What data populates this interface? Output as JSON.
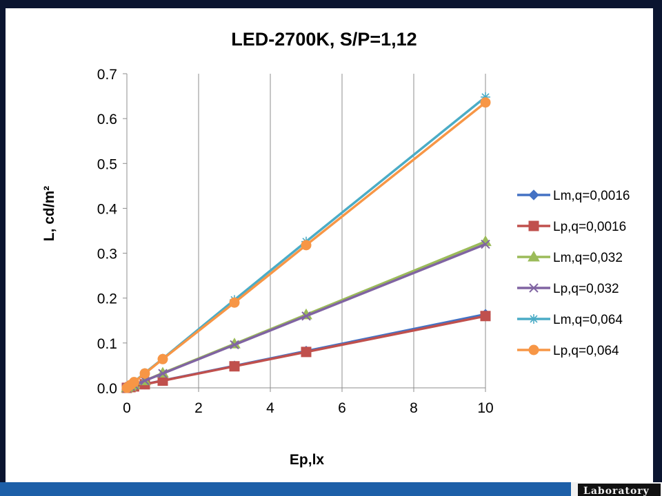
{
  "chart_data": {
    "type": "line",
    "title": "LED-2700K, S/P=1,12",
    "xlabel": "Ep,lx",
    "ylabel": "L, cd/m²",
    "xlim": [
      0,
      10
    ],
    "ylim": [
      0,
      0.7
    ],
    "xticks": [
      0,
      2,
      4,
      6,
      8,
      10
    ],
    "xtick_labels": [
      "0",
      "2",
      "4",
      "6",
      "8",
      "10"
    ],
    "yticks": [
      0,
      0.1,
      0.2,
      0.3,
      0.4,
      0.5,
      0.6,
      0.7
    ],
    "ytick_labels": [
      "0.0",
      "0.1",
      "0.2",
      "0.3",
      "0.4",
      "0.5",
      "0.6",
      "0.7"
    ],
    "grid": "vertical",
    "legend_position": "right",
    "x": [
      0,
      0.1,
      0.2,
      0.5,
      1,
      3,
      5,
      10
    ],
    "series": [
      {
        "name": "Lm,q=0,0016",
        "color": "#4472c4",
        "marker": "diamond",
        "values": [
          0,
          0.0016,
          0.0033,
          0.0082,
          0.0165,
          0.049,
          0.082,
          0.164
        ]
      },
      {
        "name": "Lp,q=0,0016",
        "color": "#c0504d",
        "marker": "square",
        "values": [
          0,
          0.0016,
          0.0032,
          0.008,
          0.016,
          0.048,
          0.08,
          0.16
        ]
      },
      {
        "name": "Lm,q=0,032",
        "color": "#9bbb59",
        "marker": "triangle",
        "values": [
          0,
          0.0033,
          0.0065,
          0.016,
          0.033,
          0.098,
          0.163,
          0.326
        ]
      },
      {
        "name": "Lp,q=0,032",
        "color": "#8064a2",
        "marker": "x",
        "values": [
          0,
          0.0032,
          0.0064,
          0.016,
          0.032,
          0.096,
          0.16,
          0.32
        ]
      },
      {
        "name": "Lm,q=0,064",
        "color": "#4bacc6",
        "marker": "star",
        "values": [
          0,
          0.0065,
          0.013,
          0.033,
          0.065,
          0.196,
          0.326,
          0.648
        ]
      },
      {
        "name": "Lp,q=0,064",
        "color": "#f79646",
        "marker": "circle",
        "values": [
          0,
          0.0064,
          0.0128,
          0.032,
          0.064,
          0.19,
          0.318,
          0.636
        ]
      }
    ]
  },
  "footer": {
    "logo_text": "Laboratory"
  }
}
